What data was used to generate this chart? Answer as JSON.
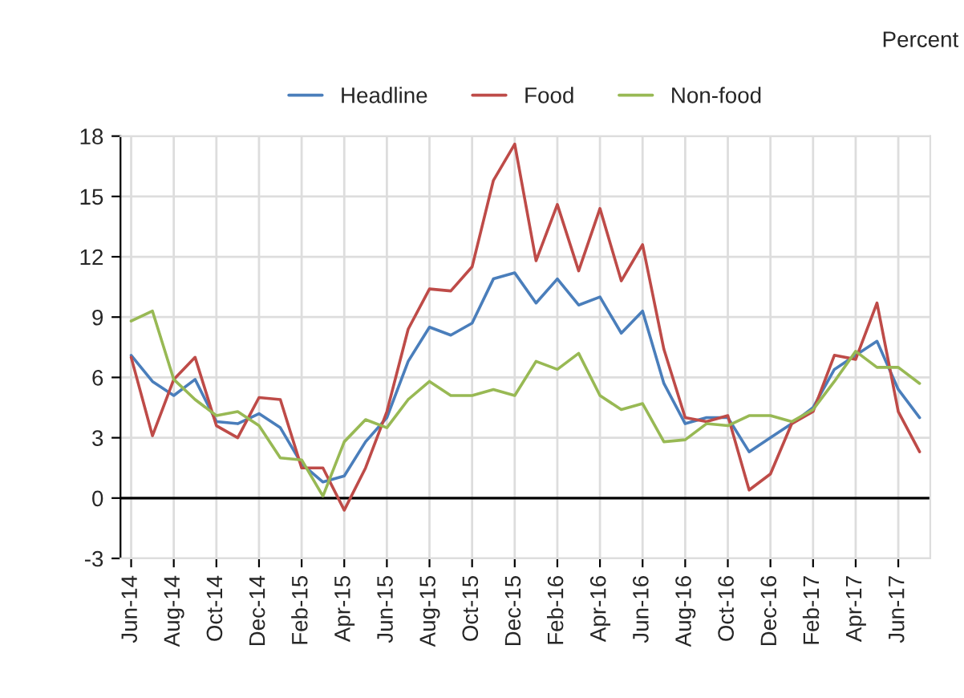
{
  "chart_data": {
    "type": "line",
    "ylabel": "Percent",
    "categories": [
      "Jun-14",
      null,
      "Aug-14",
      null,
      "Oct-14",
      null,
      "Dec-14",
      null,
      "Feb-15",
      null,
      "Apr-15",
      null,
      "Jun-15",
      null,
      "Aug-15",
      null,
      "Oct-15",
      null,
      "Dec-15",
      null,
      "Feb-16",
      null,
      "Apr-16",
      null,
      "Jun-16",
      null,
      "Aug-16",
      null,
      "Oct-16",
      null,
      "Dec-16",
      null,
      "Feb-17",
      null,
      "Apr-17",
      null,
      "Jun-17",
      null
    ],
    "series": [
      {
        "name": "Headline",
        "color": "#4a7ebb",
        "values": [
          7.1,
          5.8,
          5.1,
          5.9,
          3.8,
          3.7,
          4.2,
          3.5,
          1.7,
          0.8,
          1.1,
          2.8,
          4.0,
          6.8,
          8.5,
          8.1,
          8.7,
          10.9,
          11.2,
          9.7,
          10.9,
          9.6,
          10.0,
          8.2,
          9.3,
          5.7,
          3.7,
          4.0,
          4.0,
          2.3,
          3.0,
          3.7,
          4.5,
          6.4,
          7.1,
          7.8,
          5.4,
          4.0
        ]
      },
      {
        "name": "Food",
        "color": "#be4b48",
        "values": [
          7.0,
          3.1,
          5.9,
          7.0,
          3.6,
          3.0,
          5.0,
          4.9,
          1.5,
          1.5,
          -0.6,
          1.5,
          4.3,
          8.4,
          10.4,
          10.3,
          11.5,
          15.8,
          17.6,
          11.8,
          14.6,
          11.3,
          14.4,
          10.8,
          12.6,
          7.4,
          4.0,
          3.8,
          4.1,
          0.4,
          1.2,
          3.7,
          4.3,
          7.1,
          6.9,
          9.7,
          4.3,
          2.3
        ]
      },
      {
        "name": "Non-food",
        "color": "#98b954",
        "values": [
          8.8,
          9.3,
          5.9,
          4.9,
          4.1,
          4.3,
          3.6,
          2.0,
          1.9,
          0.1,
          2.8,
          3.9,
          3.5,
          4.9,
          5.8,
          5.1,
          5.1,
          5.4,
          5.1,
          6.8,
          6.4,
          7.2,
          5.1,
          4.4,
          4.7,
          2.8,
          2.9,
          3.7,
          3.6,
          4.1,
          4.1,
          3.8,
          4.4,
          5.8,
          7.3,
          6.5,
          6.5,
          5.7
        ]
      }
    ],
    "ylim": [
      -3,
      18
    ],
    "yticks": [
      -3,
      0,
      3,
      6,
      9,
      12,
      15,
      18
    ],
    "ref_lines": [
      {
        "axis": "y",
        "value": 0,
        "color": "#000000"
      }
    ],
    "grid": true,
    "legend": "top",
    "marker": "none",
    "line_style": "solid"
  }
}
